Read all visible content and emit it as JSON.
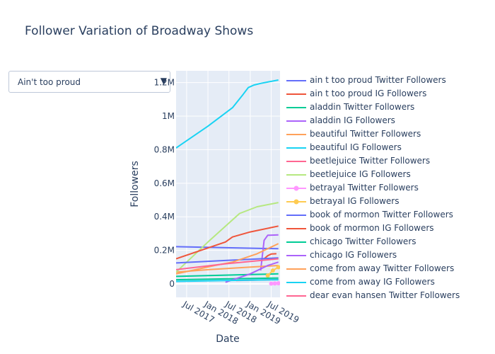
{
  "chart_data": {
    "type": "line",
    "title": "Follower Variation of Broadway Shows",
    "xlabel": "Date",
    "ylabel": "Followers",
    "x_ticks": [
      "Jul 2017",
      "Jan 2018",
      "Jul 2018",
      "Jan 2019",
      "Jul 2019"
    ],
    "y_ticks": [
      "0",
      "0.2M",
      "0.4M",
      "0.6M",
      "0.8M",
      "1M",
      "1.2M"
    ],
    "xlim": [
      "2017-04-01",
      "2019-09-15"
    ],
    "ylim": [
      -80000,
      1270000
    ],
    "grid": true,
    "legend_position": "right",
    "series": [
      {
        "name": "ain t too proud Twitter Followers",
        "color": "#636efa",
        "mode": "lines",
        "points": [
          [
            "2017-04-01",
            222000
          ],
          [
            "2019-09-01",
            210000
          ]
        ]
      },
      {
        "name": "ain t too proud IG Followers",
        "color": "#EF553B",
        "mode": "lines",
        "points": [
          [
            "2019-05-01",
            150000
          ],
          [
            "2019-06-01",
            168000
          ],
          [
            "2019-07-01",
            178000
          ],
          [
            "2019-08-15",
            180000
          ]
        ]
      },
      {
        "name": "aladdin Twitter Followers",
        "color": "#00cc96",
        "mode": "lines",
        "points": [
          [
            "2017-04-01",
            45000
          ],
          [
            "2018-01-01",
            50000
          ],
          [
            "2019-01-01",
            56000
          ],
          [
            "2019-09-01",
            60000
          ]
        ]
      },
      {
        "name": "aladdin IG Followers",
        "color": "#ab63fa",
        "mode": "lines",
        "points": [
          [
            "2019-04-01",
            80000
          ],
          [
            "2019-05-01",
            260000
          ],
          [
            "2019-06-01",
            290000
          ],
          [
            "2019-09-01",
            292000
          ]
        ]
      },
      {
        "name": "beautiful Twitter Followers",
        "color": "#FFA15A",
        "mode": "lines",
        "points": [
          [
            "2017-04-01",
            70000
          ],
          [
            "2018-01-01",
            85000
          ],
          [
            "2019-01-01",
            100000
          ],
          [
            "2019-09-01",
            110000
          ]
        ]
      },
      {
        "name": "beautiful IG Followers",
        "color": "#19d3f3",
        "mode": "lines",
        "points": [
          [
            "2017-04-01",
            810000
          ],
          [
            "2018-01-01",
            940000
          ],
          [
            "2018-08-01",
            1050000
          ],
          [
            "2018-11-01",
            1130000
          ],
          [
            "2018-12-15",
            1170000
          ],
          [
            "2019-02-01",
            1185000
          ],
          [
            "2019-04-01",
            1195000
          ],
          [
            "2019-06-15",
            1205000
          ],
          [
            "2019-09-01",
            1215000
          ]
        ]
      },
      {
        "name": "beetlejuice Twitter Followers",
        "color": "#FF6692",
        "mode": "lines",
        "points": [
          [
            "2018-09-01",
            20000
          ],
          [
            "2019-01-01",
            22000
          ],
          [
            "2019-09-01",
            26000
          ]
        ]
      },
      {
        "name": "beetlejuice IG Followers",
        "color": "#B6E880",
        "mode": "lines",
        "points": [
          [
            "2017-04-01",
            70000
          ],
          [
            "2018-01-01",
            250000
          ],
          [
            "2018-10-01",
            420000
          ],
          [
            "2019-03-01",
            460000
          ],
          [
            "2019-09-01",
            485000
          ]
        ]
      },
      {
        "name": "betrayal Twitter Followers",
        "color": "#FF97FF",
        "mode": "lines+markers",
        "points": [
          [
            "2019-07-01",
            2000
          ],
          [
            "2019-08-01",
            3000
          ],
          [
            "2019-09-01",
            4000
          ]
        ]
      },
      {
        "name": "betrayal IG Followers",
        "color": "#FECB52",
        "mode": "lines+markers",
        "points": [
          [
            "2019-06-01",
            50000
          ],
          [
            "2019-07-15",
            80000
          ],
          [
            "2019-09-01",
            100000
          ]
        ]
      },
      {
        "name": "book of mormon Twitter Followers",
        "color": "#636efa",
        "mode": "lines",
        "points": [
          [
            "2017-04-01",
            125000
          ],
          [
            "2018-06-01",
            140000
          ],
          [
            "2019-09-01",
            155000
          ]
        ]
      },
      {
        "name": "book of mormon IG Followers",
        "color": "#EF553B",
        "mode": "lines",
        "points": [
          [
            "2017-04-01",
            150000
          ],
          [
            "2018-06-01",
            250000
          ],
          [
            "2018-08-01",
            280000
          ],
          [
            "2019-01-01",
            310000
          ],
          [
            "2019-09-01",
            345000
          ]
        ]
      },
      {
        "name": "chicago Twitter Followers",
        "color": "#00cc96",
        "mode": "lines",
        "points": [
          [
            "2017-04-01",
            25000
          ],
          [
            "2018-06-01",
            30000
          ],
          [
            "2019-09-01",
            35000
          ]
        ]
      },
      {
        "name": "chicago IG Followers",
        "color": "#ab63fa",
        "mode": "lines",
        "points": [
          [
            "2018-06-01",
            10000
          ],
          [
            "2019-01-01",
            60000
          ],
          [
            "2019-06-01",
            110000
          ],
          [
            "2019-09-01",
            130000
          ]
        ]
      },
      {
        "name": "come from away Twitter Followers",
        "color": "#FFA15A",
        "mode": "lines",
        "points": [
          [
            "2017-04-01",
            60000
          ],
          [
            "2018-03-01",
            110000
          ],
          [
            "2018-08-01",
            130000
          ],
          [
            "2019-03-01",
            180000
          ],
          [
            "2019-09-01",
            240000
          ]
        ]
      },
      {
        "name": "come from away IG Followers",
        "color": "#19d3f3",
        "mode": "lines",
        "points": [
          [
            "2017-04-01",
            15000
          ],
          [
            "2018-06-01",
            20000
          ],
          [
            "2019-09-01",
            25000
          ]
        ]
      },
      {
        "name": "dear evan hansen Twitter Followers",
        "color": "#FF6692",
        "mode": "lines",
        "points": [
          [
            "2017-04-01",
            85000
          ],
          [
            "2018-06-01",
            120000
          ],
          [
            "2019-09-01",
            150000
          ]
        ]
      }
    ]
  },
  "dropdown": {
    "selected": "Ain't too proud",
    "arrow": "▼"
  }
}
